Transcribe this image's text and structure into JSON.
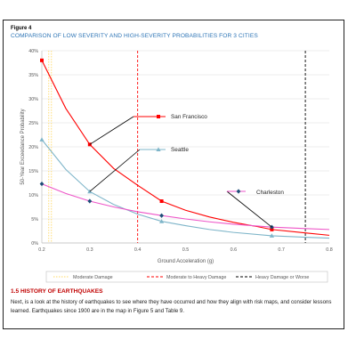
{
  "figure_label": "Figure 4",
  "figure_title": "COMPARISON OF LOW SEVERITY AND HIGH-SEVERITY PROBABILITIES FOR 3 CITIES",
  "section_heading": "1.5  HISTORY OF EARTHQUAKES",
  "body_text": "Next, is a look at the history of earthquakes to see where they have occurred and how they align with risk maps, and consider lessons learned. Earthquakes since 1900 are in the map in Figure 5 and Table 9.",
  "colors": {
    "san_francisco": "#ff0000",
    "seattle": "#7eb5c9",
    "charleston": "#ee55c8",
    "marker_dark": "#1f4e79",
    "moderate": "#ffd966",
    "moderate_heavy": "#ff0000",
    "heavy": "#000000",
    "grid": "#d9d9d9",
    "title": "#2e75b6"
  },
  "chart_data": {
    "type": "line",
    "xlabel": "Ground Acceleration (g)",
    "ylabel": "50-Year Exceedance Probability",
    "xlim": [
      0.2,
      0.8
    ],
    "ylim": [
      0,
      0.4
    ],
    "xticks": [
      "0.2",
      "0.3",
      "0.4",
      "0.5",
      "0.6",
      "0.7",
      "0.8"
    ],
    "yticks": [
      "0%",
      "5%",
      "10%",
      "15%",
      "20%",
      "25%",
      "30%",
      "35%",
      "40%"
    ],
    "grid": "horizontal",
    "series": [
      {
        "name": "San Francisco",
        "color": "#ff0000",
        "marker": "square",
        "points": [
          [
            0.2,
            0.38
          ],
          [
            0.3,
            0.205
          ],
          [
            0.45,
            0.087
          ],
          [
            0.68,
            0.028
          ]
        ],
        "curve": [
          [
            0.2,
            0.38
          ],
          [
            0.25,
            0.28
          ],
          [
            0.3,
            0.205
          ],
          [
            0.35,
            0.155
          ],
          [
            0.4,
            0.12
          ],
          [
            0.45,
            0.087
          ],
          [
            0.5,
            0.068
          ],
          [
            0.55,
            0.054
          ],
          [
            0.6,
            0.043
          ],
          [
            0.65,
            0.034
          ],
          [
            0.68,
            0.028
          ],
          [
            0.75,
            0.021
          ],
          [
            0.8,
            0.016
          ]
        ]
      },
      {
        "name": "Seattle",
        "color": "#7eb5c9",
        "marker": "triangle",
        "points": [
          [
            0.2,
            0.215
          ],
          [
            0.3,
            0.107
          ],
          [
            0.45,
            0.045
          ],
          [
            0.68,
            0.015
          ]
        ],
        "curve": [
          [
            0.2,
            0.215
          ],
          [
            0.25,
            0.153
          ],
          [
            0.3,
            0.107
          ],
          [
            0.35,
            0.08
          ],
          [
            0.4,
            0.06
          ],
          [
            0.45,
            0.045
          ],
          [
            0.5,
            0.036
          ],
          [
            0.55,
            0.028
          ],
          [
            0.6,
            0.022
          ],
          [
            0.68,
            0.015
          ],
          [
            0.75,
            0.012
          ],
          [
            0.8,
            0.01
          ]
        ]
      },
      {
        "name": "Charleston",
        "color": "#ee55c8",
        "marker": "diamond",
        "points": [
          [
            0.2,
            0.123
          ],
          [
            0.3,
            0.087
          ],
          [
            0.45,
            0.057
          ],
          [
            0.68,
            0.033
          ]
        ],
        "curve": [
          [
            0.2,
            0.123
          ],
          [
            0.25,
            0.103
          ],
          [
            0.3,
            0.087
          ],
          [
            0.35,
            0.075
          ],
          [
            0.4,
            0.065
          ],
          [
            0.45,
            0.057
          ],
          [
            0.5,
            0.05
          ],
          [
            0.55,
            0.044
          ],
          [
            0.6,
            0.039
          ],
          [
            0.68,
            0.033
          ],
          [
            0.75,
            0.03
          ],
          [
            0.8,
            0.028
          ]
        ]
      }
    ],
    "thresholds": [
      {
        "name": "Moderate Damage",
        "x": 0.22,
        "color": "#ffd966",
        "dash": "dotted"
      },
      {
        "name": "Moderate to Heavy Damage",
        "x": 0.4,
        "color": "#ff0000",
        "dash": "dashed"
      },
      {
        "name": "Heavy Damage or Worse",
        "x": 0.75,
        "color": "#000000",
        "dash": "dashed"
      }
    ],
    "annotations": [
      {
        "text": "San Francisco",
        "series": 0,
        "point_x": 0.3
      },
      {
        "text": "Seattle",
        "series": 1,
        "point_x": 0.3
      },
      {
        "text": "Charleston",
        "series": 2,
        "point_x": 0.68
      }
    ]
  }
}
